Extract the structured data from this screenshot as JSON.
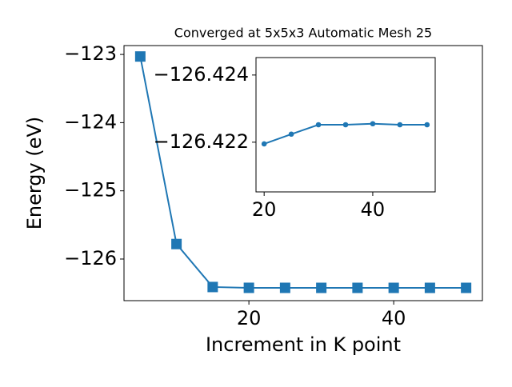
{
  "chart_data": [
    {
      "type": "line",
      "title": "Converged at 5x5x3 Automatic Mesh 25",
      "xlabel": "Increment in K point",
      "ylabel": "Energy (eV)",
      "x": [
        5,
        10,
        15,
        20,
        25,
        30,
        35,
        40,
        45,
        50
      ],
      "series": [
        {
          "color": "#1f77b4",
          "values": [
            -123.03,
            -125.78,
            -126.41,
            -126.422,
            -126.4222,
            -126.4225,
            -126.4225,
            -126.4226,
            -126.4225,
            -126.4225
          ]
        }
      ],
      "xlim": [
        2.75,
        52.25
      ],
      "xticks": [
        20,
        40
      ],
      "ylim": [
        -126.61,
        -122.87
      ],
      "yticks": [
        {
          "value": -126,
          "label": "−126"
        },
        {
          "value": -125,
          "label": "−125"
        },
        {
          "value": -124,
          "label": "−124"
        },
        {
          "value": -123,
          "label": "−123"
        }
      ]
    },
    {
      "type": "line",
      "x": [
        20,
        25,
        30,
        35,
        40,
        45,
        50
      ],
      "series": [
        {
          "color": "#1f77b4",
          "values": [
            -126.42195,
            -126.42224,
            -126.42252,
            -126.42252,
            -126.42255,
            -126.42252,
            -126.42252
          ]
        }
      ],
      "xlim": [
        18.5,
        51.5
      ],
      "xticks": [
        20,
        40
      ],
      "ylim": [
        -126.42052,
        -126.42452
      ],
      "yticks": [
        {
          "value": -126.422,
          "label": "−126.422"
        },
        {
          "value": -126.424,
          "label": "−126.424"
        }
      ]
    }
  ]
}
